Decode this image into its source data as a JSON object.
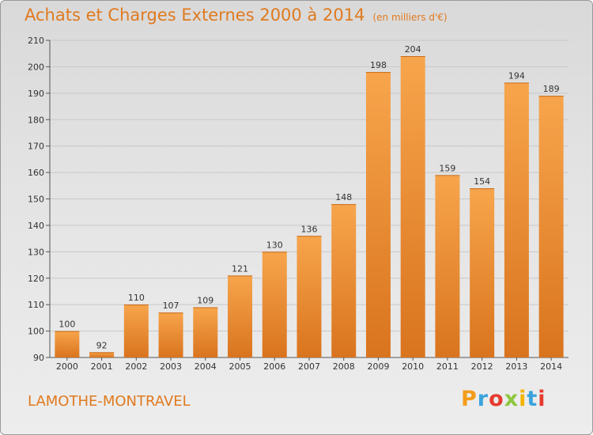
{
  "header": {
    "title": "Achats et Charges Externes 2000 à 2014",
    "unit": "(en milliers d'€)"
  },
  "footer": {
    "commune": "LAMOTHE-MONTRAVEL",
    "logo_letters": [
      "P",
      "r",
      "o",
      "x",
      "i",
      "t",
      "i"
    ],
    "logo_colors": [
      "#f39c1b",
      "#3aa3dd",
      "#e63a2e",
      "#8dc63f",
      "#f5b400",
      "#3aa3dd",
      "#e63a2e"
    ]
  },
  "colors": {
    "bar_light": "#f7a54c",
    "bar_dark": "#d9741e",
    "accent": "#e07a1e"
  },
  "chart_data": {
    "type": "bar",
    "title": "Achats et Charges Externes 2000 à 2014",
    "subtitle": "(en milliers d'€)",
    "xlabel": "",
    "ylabel": "",
    "categories": [
      "2000",
      "2001",
      "2002",
      "2003",
      "2004",
      "2005",
      "2006",
      "2007",
      "2008",
      "2009",
      "2010",
      "2011",
      "2012",
      "2013",
      "2014"
    ],
    "values": [
      100,
      92,
      110,
      107,
      109,
      121,
      130,
      136,
      148,
      198,
      204,
      159,
      154,
      194,
      189
    ],
    "ylim": [
      90,
      210
    ],
    "yticks": [
      90,
      100,
      110,
      120,
      130,
      140,
      150,
      160,
      170,
      180,
      190,
      200,
      210
    ],
    "grid": true,
    "legend": "none"
  }
}
